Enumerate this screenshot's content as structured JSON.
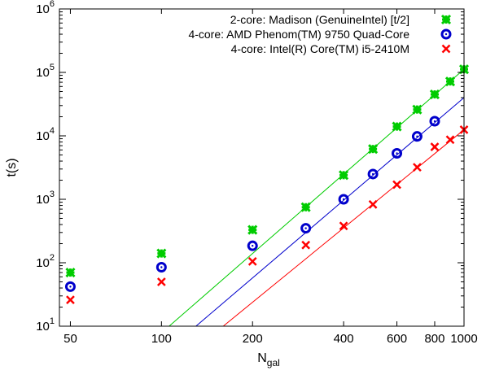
{
  "chart_data": {
    "type": "scatter",
    "title": "",
    "xlabel": "N",
    "xlabel_sub": "gal",
    "ylabel": "t(s)",
    "xscale": "log",
    "yscale": "log",
    "xlim": [
      46,
      1000
    ],
    "ylim": [
      10,
      1000000
    ],
    "grid": false,
    "legend_position": "top-right",
    "x_ticks": [
      {
        "value": 50,
        "label": "50"
      },
      {
        "value": 100,
        "label": "100"
      },
      {
        "value": 200,
        "label": "200"
      },
      {
        "value": 400,
        "label": "400"
      },
      {
        "value": 600,
        "label": "600"
      },
      {
        "value": 800,
        "label": "800"
      },
      {
        "value": 1000,
        "label": "1000"
      }
    ],
    "y_ticks": [
      {
        "value": 10,
        "exp": "1"
      },
      {
        "value": 100,
        "exp": "2"
      },
      {
        "value": 1000,
        "exp": "3"
      },
      {
        "value": 10000,
        "exp": "4"
      },
      {
        "value": 100000,
        "exp": "5"
      },
      {
        "value": 1000000,
        "exp": "6"
      }
    ],
    "y_tick_base": "10",
    "series": [
      {
        "name": "2-core: Madison (GenuineIntel) [t/2]",
        "color": "#00cc00",
        "marker": "star",
        "x": [
          50,
          100,
          200,
          300,
          400,
          500,
          600,
          700,
          800,
          900,
          1000
        ],
        "y": [
          70,
          140,
          330,
          750,
          2400,
          6200,
          14000,
          26000,
          45000,
          72000,
          112000
        ],
        "fit": {
          "x": [
            106,
            1000
          ],
          "y": [
            10,
            112000
          ]
        }
      },
      {
        "name": "4-core: AMD Phenom(TM) 9750 Quad-Core",
        "color": "#0000cc",
        "marker": "circle",
        "x": [
          50,
          100,
          200,
          300,
          400,
          500,
          600,
          700,
          800
        ],
        "y": [
          42,
          85,
          185,
          350,
          1000,
          2500,
          5300,
          9800,
          17000
        ],
        "fit": {
          "x": [
            130,
            1000
          ],
          "y": [
            10,
            40000
          ]
        }
      },
      {
        "name": "4-core: Intel(R) Core(TM) i5-2410M",
        "color": "#ff0000",
        "marker": "x",
        "x": [
          50,
          100,
          200,
          300,
          400,
          500,
          600,
          700,
          800,
          900,
          1000
        ],
        "y": [
          26,
          50,
          105,
          190,
          380,
          830,
          1700,
          3200,
          6700,
          8700,
          12500
        ],
        "fit": {
          "x": [
            160,
            1000
          ],
          "y": [
            10,
            12500
          ]
        }
      }
    ]
  }
}
